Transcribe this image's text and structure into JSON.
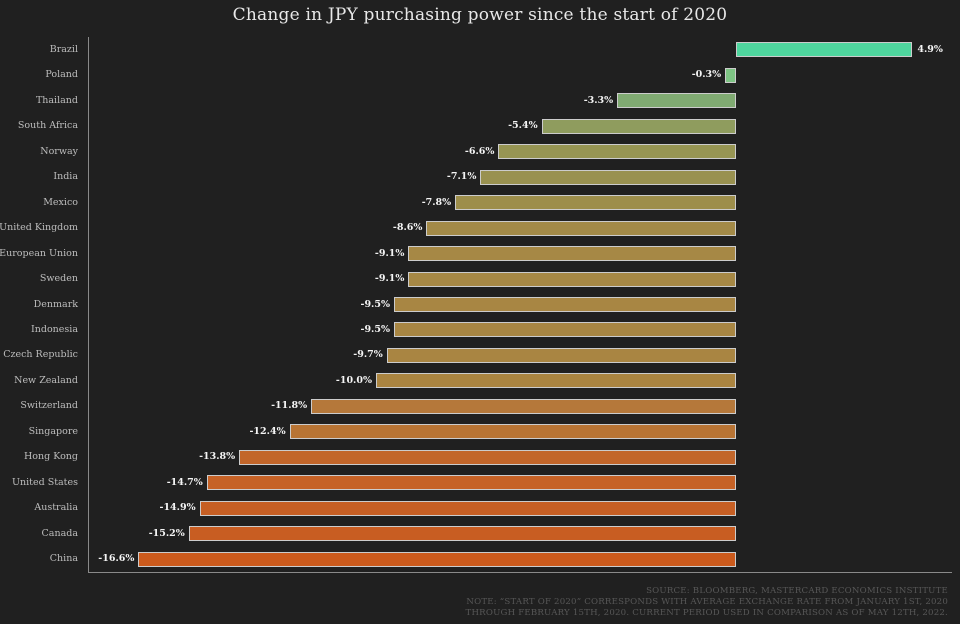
{
  "title": "Change in JPY purchasing power since the start of 2020",
  "chart_data": {
    "type": "bar",
    "orientation": "horizontal",
    "title": "Change in JPY purchasing power since the start of 2020",
    "xlabel": "",
    "ylabel": "",
    "xlim": [
      -18,
      6
    ],
    "baseline": 0,
    "grid": false,
    "legend": "none",
    "categories": [
      "Brazil",
      "Poland",
      "Thailand",
      "South Africa",
      "Norway",
      "India",
      "Mexico",
      "United Kingdom",
      "European Union",
      "Sweden",
      "Denmark",
      "Indonesia",
      "Czech Republic",
      "New Zealand",
      "Switzerland",
      "Singapore",
      "Hong Kong",
      "United States",
      "Australia",
      "Canada",
      "China"
    ],
    "values": [
      4.9,
      -0.3,
      -3.3,
      -5.4,
      -6.6,
      -7.1,
      -7.8,
      -8.6,
      -9.1,
      -9.1,
      -9.5,
      -9.5,
      -9.7,
      -10.0,
      -11.8,
      -12.4,
      -13.8,
      -14.7,
      -14.9,
      -15.2,
      -16.6
    ],
    "value_labels": [
      "4.9%",
      "-0.3%",
      "-3.3%",
      "-5.4%",
      "-6.6%",
      "-7.1%",
      "-7.8%",
      "-8.6%",
      "-9.1%",
      "-9.1%",
      "-9.5%",
      "-9.5%",
      "-9.7%",
      "-10.0%",
      "-11.8%",
      "-12.4%",
      "-13.8%",
      "-14.7%",
      "-14.9%",
      "-15.2%",
      "-16.6%"
    ],
    "bar_colors": [
      "#4fd69e",
      "#7ec484",
      "#80aa72",
      "#8f9c5e",
      "#979553",
      "#999150",
      "#9d8e4b",
      "#a38a48",
      "#a68845",
      "#a68845",
      "#a88643",
      "#a88643",
      "#a98542",
      "#aa8440",
      "#b5783a",
      "#b87434",
      "#c2662a",
      "#c66226",
      "#c65f24",
      "#c85d22",
      "#cb5a1c"
    ]
  },
  "footer": {
    "line1": "SOURCE: BLOOMBERG, MASTERCARD ECONOMICS INSTITUTE",
    "line2": "NOTE: “START OF 2020” CORRESPONDS WITH AVERAGE EXCHANGE RATE FROM JANUARY 1ST, 2020",
    "line3": "THROUGH FEBRUARY 15TH, 2020. CURRENT PERIOD USED IN COMPARISON AS OF MAY 12TH, 2022."
  },
  "colors": {
    "background": "#202020",
    "title_text": "#e8e8e8",
    "category_text": "#bdbdbd",
    "value_text": "#f5f5f5",
    "axis": "#8a8a8a",
    "bar_border": "#cccccc",
    "footer_text": "#575757"
  }
}
